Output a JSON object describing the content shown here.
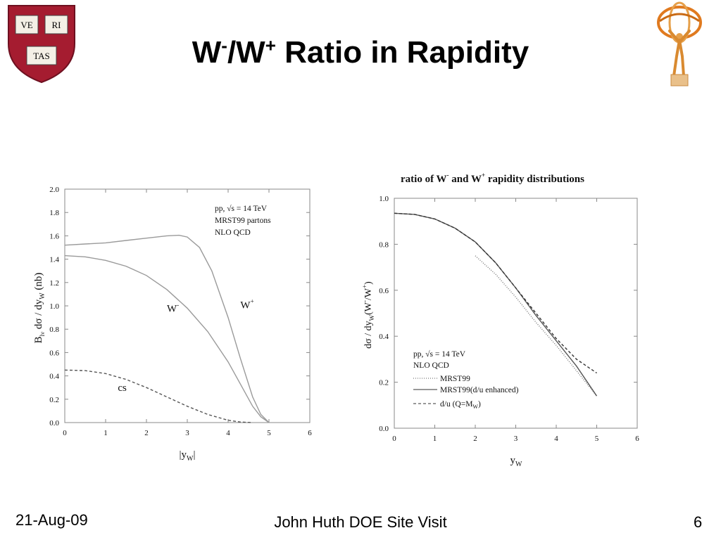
{
  "slide": {
    "title_main": "W",
    "title_sup1": "-",
    "title_mid": "/W",
    "title_sup2": "+",
    "title_rest": " Ratio in Rapidity",
    "footer_date": "21-Aug-09",
    "footer_center": "John Huth DOE Site Visit",
    "footer_page": "6",
    "logo_left_words": [
      "VE",
      "RI",
      "TAS"
    ],
    "logo_left_color": "#a51c30"
  },
  "chart_data": [
    {
      "type": "line",
      "xlabel": "|y",
      "xlabel_sub": "W",
      "xlabel_end": "|",
      "ylabel": "B",
      "ylabel_sub": "lν",
      "ylabel_mid": " dσ / dy",
      "ylabel_sub2": "W",
      "ylabel_end": "   (nb)",
      "xlim": [
        0,
        6
      ],
      "ylim": [
        0,
        2.0
      ],
      "xticks": [
        "0",
        "1",
        "2",
        "3",
        "4",
        "5",
        "6"
      ],
      "yticks": [
        "0.0",
        "0.2",
        "0.4",
        "0.6",
        "0.8",
        "1.0",
        "1.2",
        "1.4",
        "1.6",
        "1.8",
        "2.0"
      ],
      "annotation_lines": [
        "pp, √s = 14 TeV",
        "MRST99 partons",
        "NLO QCD"
      ],
      "series": [
        {
          "name": "W⁺",
          "style": "solid",
          "color": "#9a9a9a",
          "x": [
            0,
            0.5,
            1.0,
            1.5,
            2.0,
            2.5,
            2.8,
            3.0,
            3.3,
            3.6,
            4.0,
            4.3,
            4.6,
            4.8,
            5.0
          ],
          "y": [
            1.52,
            1.53,
            1.54,
            1.56,
            1.58,
            1.6,
            1.605,
            1.59,
            1.5,
            1.3,
            0.9,
            0.55,
            0.22,
            0.07,
            0.0
          ]
        },
        {
          "name": "W⁻",
          "style": "solid",
          "color": "#9a9a9a",
          "x": [
            0,
            0.5,
            1.0,
            1.5,
            2.0,
            2.5,
            3.0,
            3.5,
            4.0,
            4.3,
            4.6,
            4.8,
            5.0
          ],
          "y": [
            1.43,
            1.42,
            1.39,
            1.34,
            1.26,
            1.14,
            0.98,
            0.78,
            0.52,
            0.33,
            0.14,
            0.05,
            0.0
          ]
        },
        {
          "name": "cs",
          "style": "dashed",
          "color": "#555555",
          "x": [
            0,
            0.5,
            1.0,
            1.5,
            2.0,
            2.5,
            3.0,
            3.5,
            4.0,
            4.3,
            4.6
          ],
          "y": [
            0.45,
            0.445,
            0.42,
            0.37,
            0.3,
            0.22,
            0.14,
            0.07,
            0.02,
            0.005,
            0.0
          ]
        }
      ],
      "series_labels": [
        {
          "text": "W",
          "sup": "+",
          "x": 4.3,
          "y": 0.98
        },
        {
          "text": "W",
          "sup": "-",
          "x": 2.5,
          "y": 0.95
        },
        {
          "text": "cs",
          "sup": "",
          "x": 1.3,
          "y": 0.27
        }
      ]
    },
    {
      "type": "line",
      "title": "ratio of W",
      "title_sup1": "-",
      "title_mid": " and W",
      "title_sup2": "+",
      "title_end": " rapidity distributions",
      "xlabel": "y",
      "xlabel_sub": "W",
      "ylabel": "dσ / dy",
      "ylabel_sub": "W",
      "ylabel_end": "(W",
      "ylabel_sup1": "-",
      "ylabel_mid": "/W",
      "ylabel_sup2": "+",
      "ylabel_close": ")",
      "xlim": [
        0,
        6
      ],
      "ylim": [
        0,
        1.0
      ],
      "xticks": [
        "0",
        "1",
        "2",
        "3",
        "4",
        "5",
        "6"
      ],
      "yticks": [
        "0.0",
        "0.2",
        "0.4",
        "0.6",
        "0.8",
        "1.0"
      ],
      "annotation_lines": [
        "pp, √s = 14 TeV",
        "NLO QCD"
      ],
      "series": [
        {
          "name": "MRST99",
          "style": "dotted",
          "color": "#777777",
          "x": [
            2.0,
            2.5,
            3.0,
            3.5,
            4.0,
            4.5,
            5.0
          ],
          "y": [
            0.75,
            0.67,
            0.57,
            0.46,
            0.36,
            0.25,
            0.14
          ]
        },
        {
          "name": "MRST99(d/u enhanced)",
          "style": "solid",
          "color": "#555555",
          "x": [
            0,
            0.5,
            1.0,
            1.5,
            2.0,
            2.5,
            3.0,
            3.5,
            4.0,
            4.5,
            5.0
          ],
          "y": [
            0.935,
            0.93,
            0.91,
            0.87,
            0.81,
            0.72,
            0.61,
            0.49,
            0.38,
            0.27,
            0.14
          ]
        },
        {
          "name": "d/u (Q=M",
          "name_sub": "W",
          "name_end": ")",
          "style": "dashed",
          "color": "#333333",
          "x": [
            0,
            0.5,
            1.0,
            1.5,
            2.0,
            2.5,
            3.0,
            3.5,
            4.0,
            4.5,
            5.0
          ],
          "y": [
            0.935,
            0.93,
            0.91,
            0.87,
            0.81,
            0.72,
            0.61,
            0.5,
            0.39,
            0.3,
            0.24
          ]
        }
      ]
    }
  ]
}
